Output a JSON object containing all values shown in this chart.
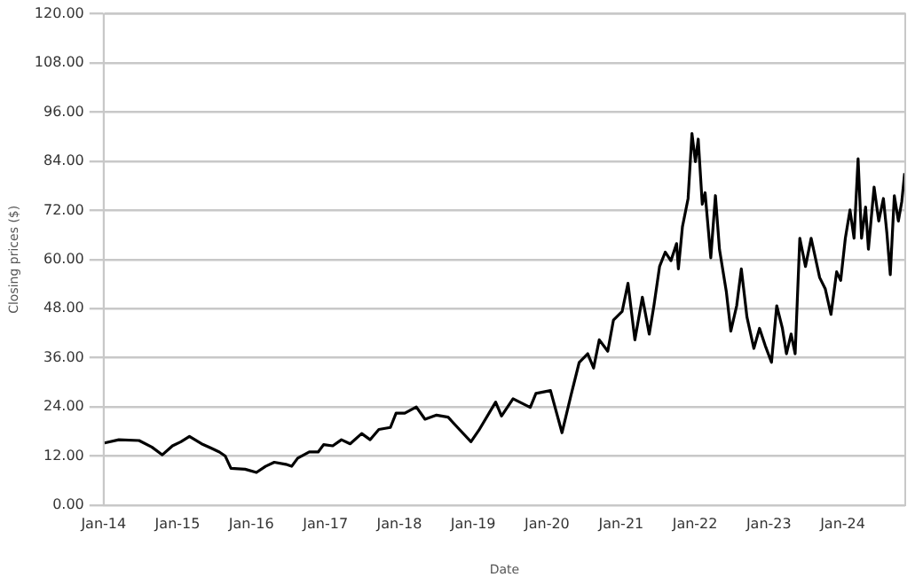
{
  "chart_data": {
    "type": "line",
    "xlabel": "Date",
    "ylabel": "Closing prices ($)",
    "x": [
      "2014-01-05",
      "2014-03-17",
      "2014-06-25",
      "2014-08-27",
      "2014-10-18",
      "2014-12-07",
      "2015-01-18",
      "2015-03-01",
      "2015-04-30",
      "2015-06-13",
      "2015-07-27",
      "2015-08-25",
      "2015-09-22",
      "2015-12-01",
      "2016-01-26",
      "2016-03-11",
      "2016-04-23",
      "2016-06-19",
      "2016-07-18",
      "2016-08-17",
      "2016-10-13",
      "2016-11-26",
      "2016-12-23",
      "2017-02-06",
      "2017-03-21",
      "2017-05-03",
      "2017-06-29",
      "2017-08-10",
      "2017-09-22",
      "2017-11-18",
      "2017-12-16",
      "2018-01-28",
      "2018-03-26",
      "2018-05-08",
      "2018-07-04",
      "2018-08-30",
      "2018-10-25",
      "2018-12-21",
      "2019-01-29",
      "2019-04-22",
      "2019-05-21",
      "2019-07-17",
      "2019-10-10",
      "2019-11-07",
      "2020-01-18",
      "2020-03-15",
      "2020-04-27",
      "2020-06-08",
      "2020-07-20",
      "2020-08-18",
      "2020-09-15",
      "2020-10-27",
      "2020-11-24",
      "2021-01-06",
      "2021-02-04",
      "2021-03-10",
      "2021-04-16",
      "2021-05-20",
      "2021-06-12",
      "2021-07-10",
      "2021-08-07",
      "2021-09-04",
      "2021-10-02",
      "2021-10-11",
      "2021-10-31",
      "2021-11-28",
      "2021-12-17",
      "2022-01-03",
      "2022-01-17",
      "2022-02-06",
      "2022-02-20",
      "2022-03-20",
      "2022-04-12",
      "2022-05-02",
      "2022-06-05",
      "2022-06-27",
      "2022-07-26",
      "2022-08-18",
      "2022-09-15",
      "2022-10-19",
      "2022-11-16",
      "2022-12-14",
      "2023-01-14",
      "2023-02-09",
      "2023-03-09",
      "2023-03-29",
      "2023-04-21",
      "2023-05-11",
      "2023-06-03",
      "2023-07-01",
      "2023-07-29",
      "2023-09-09",
      "2023-10-07",
      "2023-11-04",
      "2023-12-02",
      "2023-12-22",
      "2024-01-14",
      "2024-02-06",
      "2024-02-26",
      "2024-03-17",
      "2024-04-03",
      "2024-04-23",
      "2024-05-07",
      "2024-06-04",
      "2024-06-27",
      "2024-07-20",
      "2024-08-06",
      "2024-08-23",
      "2024-09-12",
      "2024-10-02",
      "2024-10-19",
      "2024-11-02"
    ],
    "series": [
      {
        "color": "#000000",
        "values": [
          15.2,
          16,
          15.8,
          14.2,
          12.3,
          14.5,
          15.5,
          16.8,
          15,
          14,
          13,
          12,
          9,
          8.8,
          8,
          9.5,
          10.5,
          10,
          9.5,
          11.5,
          13,
          13,
          14.8,
          14.5,
          16,
          15,
          17.5,
          16,
          18.5,
          19,
          22.5,
          22.5,
          24,
          21,
          22,
          21.5,
          18.5,
          15.5,
          18.3,
          25.2,
          21.8,
          26,
          23.9,
          27.3,
          28,
          17.7,
          26.6,
          34.9,
          37,
          33.5,
          40.4,
          37.6,
          45.2,
          47.3,
          54.2,
          40.4,
          50.8,
          41.8,
          48.7,
          58.3,
          61.8,
          59.7,
          63.9,
          57.7,
          68,
          74.9,
          90.8,
          83.9,
          89.4,
          73.5,
          76.3,
          60.4,
          75.6,
          62.5,
          52.1,
          42.5,
          48.7,
          57.7,
          45.9,
          38.3,
          43.2,
          39,
          34.9,
          48.7,
          43.2,
          37,
          41.8,
          37,
          65.2,
          58.3,
          65.2,
          55.6,
          52.8,
          46.6,
          57,
          54.9,
          65.2,
          72.1,
          65.2,
          84.6,
          65.2,
          72.8,
          62.5,
          77.7,
          69.4,
          74.9,
          66.6,
          56.3,
          75.6,
          69.4,
          74.2,
          81.1
        ]
      }
    ],
    "xlim": [
      "2014-01-01",
      "2024-11-05"
    ],
    "xticks": [
      {
        "value": "2014-01-01",
        "label": "Jan-14"
      },
      {
        "value": "2015-01-01",
        "label": "Jan-15"
      },
      {
        "value": "2016-01-01",
        "label": "Jan-16"
      },
      {
        "value": "2017-01-01",
        "label": "Jan-17"
      },
      {
        "value": "2018-01-01",
        "label": "Jan-18"
      },
      {
        "value": "2019-01-01",
        "label": "Jan-19"
      },
      {
        "value": "2020-01-01",
        "label": "Jan-20"
      },
      {
        "value": "2021-01-01",
        "label": "Jan-21"
      },
      {
        "value": "2022-01-01",
        "label": "Jan-22"
      },
      {
        "value": "2023-01-01",
        "label": "Jan-23"
      },
      {
        "value": "2024-01-01",
        "label": "Jan-24"
      }
    ],
    "ylim": [
      0,
      120
    ],
    "yticks": [
      {
        "value": 0,
        "label": "0.00"
      },
      {
        "value": 12,
        "label": "12.00"
      },
      {
        "value": 24,
        "label": "24.00"
      },
      {
        "value": 36,
        "label": "36.00"
      },
      {
        "value": 48,
        "label": "48.00"
      },
      {
        "value": 60,
        "label": "60.00"
      },
      {
        "value": 72,
        "label": "72.00"
      },
      {
        "value": 84,
        "label": "84.00"
      },
      {
        "value": 96,
        "label": "96.00"
      },
      {
        "value": 108,
        "label": "108.00"
      },
      {
        "value": 120,
        "label": "120.00"
      }
    ],
    "grid": "y",
    "legend": false,
    "marker": "none",
    "line_style": "solid"
  }
}
